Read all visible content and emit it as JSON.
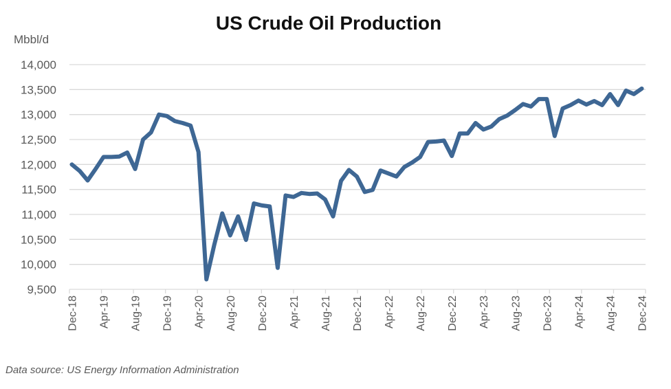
{
  "chart_data": {
    "type": "line",
    "title": "US Crude Oil Production",
    "ylabel": "Mbbl/d",
    "xlabel": "",
    "source": "Data source: US Energy Information Administration",
    "ylim": [
      9500,
      14000
    ],
    "yticks": [
      9500,
      10000,
      10500,
      11000,
      11500,
      12000,
      12500,
      13000,
      13500,
      14000
    ],
    "ytick_labels": [
      "9,500",
      "10,000",
      "10,500",
      "11,000",
      "11,500",
      "12,000",
      "12,500",
      "13,000",
      "13,500",
      "14,000"
    ],
    "xtick_labels": [
      "Dec-18",
      "Apr-19",
      "Aug-19",
      "Dec-19",
      "Apr-20",
      "Aug-20",
      "Dec-20",
      "Apr-21",
      "Aug-21",
      "Dec-21",
      "Apr-22",
      "Aug-22",
      "Dec-22",
      "Apr-23",
      "Aug-23",
      "Dec-23",
      "Apr-24",
      "Aug-24",
      "Dec-24"
    ],
    "grid": true,
    "line_color": "#3e6794",
    "grid_color": "#d9d9d9",
    "categories": [
      "Dec-18",
      "Jan-19",
      "Feb-19",
      "Mar-19",
      "Apr-19",
      "May-19",
      "Jun-19",
      "Jul-19",
      "Aug-19",
      "Sep-19",
      "Oct-19",
      "Nov-19",
      "Dec-19",
      "Jan-20",
      "Feb-20",
      "Mar-20",
      "Apr-20",
      "May-20",
      "Jun-20",
      "Jul-20",
      "Aug-20",
      "Sep-20",
      "Oct-20",
      "Nov-20",
      "Dec-20",
      "Jan-21",
      "Feb-21",
      "Mar-21",
      "Apr-21",
      "May-21",
      "Jun-21",
      "Jul-21",
      "Aug-21",
      "Sep-21",
      "Oct-21",
      "Nov-21",
      "Dec-21",
      "Jan-22",
      "Feb-22",
      "Mar-22",
      "Apr-22",
      "May-22",
      "Jun-22",
      "Jul-22",
      "Aug-22",
      "Sep-22",
      "Oct-22",
      "Nov-22",
      "Dec-22",
      "Jan-23",
      "Feb-23",
      "Mar-23",
      "Apr-23",
      "May-23",
      "Jun-23",
      "Jul-23",
      "Aug-23",
      "Sep-23",
      "Oct-23",
      "Nov-23",
      "Dec-23",
      "Jan-24",
      "Feb-24",
      "Mar-24",
      "Apr-24",
      "May-24",
      "Jun-24",
      "Jul-24",
      "Aug-24",
      "Sep-24",
      "Oct-24",
      "Nov-24",
      "Dec-24"
    ],
    "values": [
      12000,
      11870,
      11680,
      11910,
      12150,
      12150,
      12160,
      12240,
      11910,
      12500,
      12640,
      13000,
      12970,
      12870,
      12830,
      12780,
      12250,
      9700,
      10400,
      11020,
      10580,
      10960,
      10490,
      11220,
      11180,
      11160,
      9930,
      11380,
      11350,
      11430,
      11410,
      11420,
      11300,
      10960,
      11670,
      11890,
      11760,
      11450,
      11490,
      11880,
      11820,
      11760,
      11950,
      12040,
      12150,
      12450,
      12460,
      12480,
      12170,
      12620,
      12620,
      12830,
      12700,
      12760,
      12910,
      12980,
      13090,
      13210,
      13160,
      13310,
      13310,
      12570,
      13120,
      13190,
      13280,
      13200,
      13270,
      13190,
      13410,
      13190,
      13480,
      13410,
      13520
    ]
  }
}
